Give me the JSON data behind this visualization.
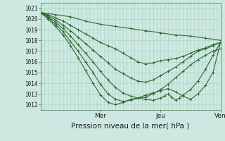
{
  "xlabel": "Pression niveau de la mer( hPa )",
  "bg_color": "#cce8e0",
  "grid_color": "#b0d4c8",
  "line_color": "#2d6a2d",
  "marker": "+",
  "ylim": [
    1011.5,
    1021.5
  ],
  "yticks": [
    1012,
    1013,
    1014,
    1015,
    1016,
    1017,
    1018,
    1019,
    1020,
    1021
  ],
  "xlim": [
    0,
    48
  ],
  "xtick_positions": [
    16,
    32,
    48
  ],
  "xtick_labels": [
    "Mer",
    "Jeu",
    "Ven"
  ],
  "n_vgrid": 49,
  "lines": [
    {
      "x": [
        0,
        4,
        8,
        12,
        16,
        20,
        24,
        28,
        32,
        36,
        40,
        44,
        48
      ],
      "y": [
        1020.6,
        1020.4,
        1020.2,
        1019.8,
        1019.5,
        1019.3,
        1019.1,
        1018.9,
        1018.7,
        1018.5,
        1018.4,
        1018.2,
        1018.0
      ]
    },
    {
      "x": [
        0,
        2,
        4,
        6,
        8,
        10,
        12,
        14,
        16,
        18,
        20,
        22,
        24,
        26,
        28,
        30,
        32,
        34,
        36,
        38,
        40,
        42,
        44,
        46,
        48
      ],
      "y": [
        1020.6,
        1020.4,
        1020.1,
        1019.8,
        1019.4,
        1019.0,
        1018.6,
        1018.2,
        1017.8,
        1017.5,
        1017.2,
        1016.8,
        1016.4,
        1016.0,
        1015.8,
        1015.9,
        1016.1,
        1016.2,
        1016.3,
        1016.5,
        1016.8,
        1017.1,
        1017.3,
        1017.6,
        1017.8
      ]
    },
    {
      "x": [
        0,
        2,
        4,
        6,
        8,
        10,
        12,
        14,
        16,
        18,
        20,
        22,
        24,
        26,
        28,
        30,
        32,
        34,
        36,
        38,
        40,
        42,
        44,
        46,
        48
      ],
      "y": [
        1020.6,
        1020.3,
        1019.9,
        1019.4,
        1018.9,
        1018.3,
        1017.7,
        1017.1,
        1016.5,
        1015.9,
        1015.3,
        1014.9,
        1014.5,
        1014.2,
        1014.1,
        1014.3,
        1014.7,
        1015.1,
        1015.5,
        1016.0,
        1016.5,
        1017.0,
        1017.2,
        1017.5,
        1017.8
      ]
    },
    {
      "x": [
        0,
        2,
        4,
        6,
        8,
        10,
        12,
        14,
        16,
        18,
        20,
        22,
        24,
        26,
        28,
        30,
        32,
        34,
        36,
        38,
        40,
        42,
        44,
        46,
        48
      ],
      "y": [
        1020.6,
        1020.2,
        1019.7,
        1019.1,
        1018.4,
        1017.6,
        1016.8,
        1016.0,
        1015.1,
        1014.3,
        1013.6,
        1013.1,
        1012.8,
        1012.6,
        1012.7,
        1013.0,
        1013.4,
        1013.9,
        1014.5,
        1015.1,
        1015.7,
        1016.2,
        1016.6,
        1017.0,
        1017.2
      ]
    },
    {
      "x": [
        0,
        2,
        4,
        6,
        8,
        10,
        12,
        14,
        16,
        18,
        20,
        22,
        24,
        26,
        28,
        30,
        32,
        34,
        36,
        38,
        40,
        42,
        44,
        46,
        48
      ],
      "y": [
        1020.6,
        1020.1,
        1019.5,
        1018.8,
        1017.9,
        1017.0,
        1016.0,
        1015.0,
        1013.9,
        1013.0,
        1012.5,
        1012.3,
        1012.4,
        1012.6,
        1012.9,
        1013.1,
        1013.3,
        1013.5,
        1013.2,
        1012.8,
        1012.5,
        1013.0,
        1013.8,
        1015.0,
        1017.8
      ]
    },
    {
      "x": [
        0,
        2,
        4,
        6,
        8,
        10,
        12,
        14,
        16,
        18,
        20,
        22,
        24,
        26,
        28,
        30,
        32,
        33,
        34,
        35,
        36,
        37,
        38,
        40,
        42,
        44,
        46,
        48
      ],
      "y": [
        1020.6,
        1020.0,
        1019.3,
        1018.5,
        1017.5,
        1016.4,
        1015.2,
        1014.0,
        1012.9,
        1012.2,
        1012.0,
        1012.2,
        1012.5,
        1012.6,
        1012.5,
        1012.4,
        1012.6,
        1012.8,
        1013.0,
        1012.7,
        1012.4,
        1012.6,
        1012.9,
        1013.4,
        1014.2,
        1015.3,
        1016.6,
        1017.8
      ]
    }
  ]
}
